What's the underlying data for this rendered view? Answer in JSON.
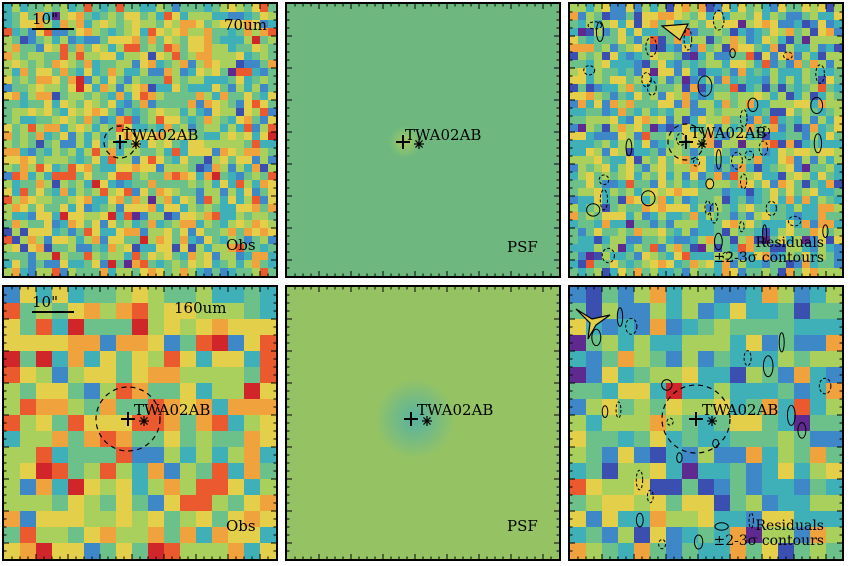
{
  "source_name": "TWA02AB",
  "scale_label": "10\"",
  "rows": [
    {
      "band": "70um",
      "panels": [
        {
          "kind": "obs",
          "label": "Obs"
        },
        {
          "kind": "psf",
          "label": "PSF"
        },
        {
          "kind": "residuals",
          "label_line1": "Residuals",
          "label_line2": "±2-3σ contours"
        }
      ]
    },
    {
      "band": "160um",
      "panels": [
        {
          "kind": "obs",
          "label": "Obs"
        },
        {
          "kind": "psf",
          "label": "PSF"
        },
        {
          "kind": "residuals",
          "label_line1": "Residuals",
          "label_line2": "±2-3σ contours"
        }
      ]
    }
  ],
  "colors": {
    "colormap": [
      "#5e2a8f",
      "#3b4fb0",
      "#3f88c8",
      "#3fb0b8",
      "#6cc08a",
      "#a9cf5c",
      "#e4cf4a",
      "#f0a23c",
      "#ea5a2e",
      "#d0262a"
    ],
    "psf_background_70um": "#6eb87f",
    "psf_background_160um": "#95c364"
  }
}
